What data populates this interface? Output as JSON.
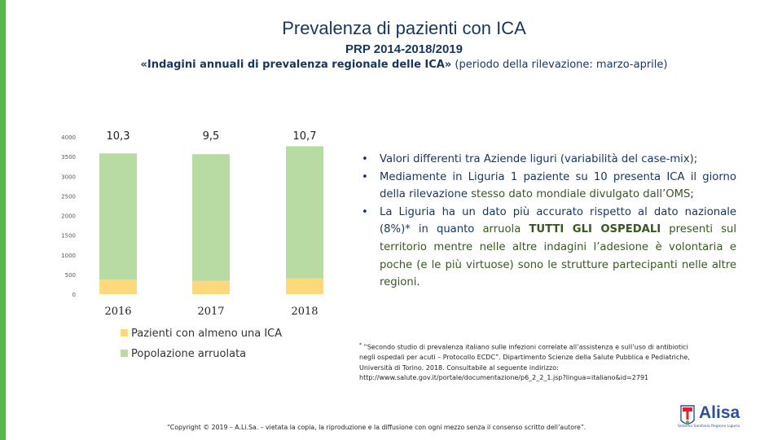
{
  "header": {
    "title": "Prevalenza di pazienti con ICA",
    "subtitle": "PRP 2014-2018/2019",
    "subtitle2_bold": "«Indagini annuali di prevalenza regionale delle ICA»",
    "subtitle2_rest": " (periodo della rilevazione: marzo-aprile)"
  },
  "chart_data": {
    "type": "bar",
    "stacked": true,
    "categories": [
      "2016",
      "2017",
      "2018"
    ],
    "series": [
      {
        "name": "Pazienti con almeno una ICA",
        "values": [
          370,
          340,
          400
        ],
        "color": "#fdd87c"
      },
      {
        "name": "Popolazione arruolata",
        "values": [
          3210,
          3220,
          3360
        ],
        "color": "#b7dba3"
      }
    ],
    "data_labels": [
      "10,3",
      "9,5",
      "10,7"
    ],
    "y_ticks": [
      "0",
      "500",
      "1000",
      "1500",
      "2000",
      "2500",
      "3000",
      "3500",
      "4000"
    ],
    "ylim": [
      0,
      4000
    ],
    "legend_position": "bottom-left",
    "grid": false
  },
  "notes": {
    "b1": "Valori differenti tra Aziende liguri (variabilità del case-mix);",
    "b2_a": "Mediamente in Liguria 1 paziente su 10 presenta ICA il giorno della rilevazione ",
    "b2_hl": "stesso dato mondiale divulgato dall’OMS",
    "b2_b": ";",
    "b3_a": "La Liguria ha un dato più accurato rispetto al dato nazionale (8%)* in quanto ",
    "b3_hl1": "arruola ",
    "b3_hl2": "TUTTI GLI OSPEDALI",
    "b3_hl3": " presenti sul territorio mentre nelle altre indagini l’adesione è volontaria e poche (e le più virtuose) sono le strutture partecipanti nelle altre regioni",
    "b3_b": "."
  },
  "footnote": {
    "star": "*",
    "line1": " “Secondo studio di prevalenza italiano sulle infezioni correlate all’assistenza e sull’uso di antibiotici",
    "line2": "negli ospedali per acuti – Protocollo ECDC”. Dipartimento Scienze della Salute Pubblica e Pediatriche,",
    "line3": "Università di Torino. 2018. Consultabile al seguente indirizzo:",
    "line4": "http://www.salute.gov.it/portale/documentazione/p6_2_2_1.jsp?lingua=italiano&id=2791"
  },
  "copyright": "“Copyright © 2019 – A.Li.Sa. – vietata la copia, la riproduzione e la diffusione con ogni mezzo senza il consenso scritto dell’autore”.",
  "logo": {
    "name": "Alisa",
    "tagline": "Sistema Sanitario Regione Liguria",
    "colors": {
      "blue": "#2f4f9a",
      "red": "#d22630",
      "green": "#59b64a"
    }
  }
}
